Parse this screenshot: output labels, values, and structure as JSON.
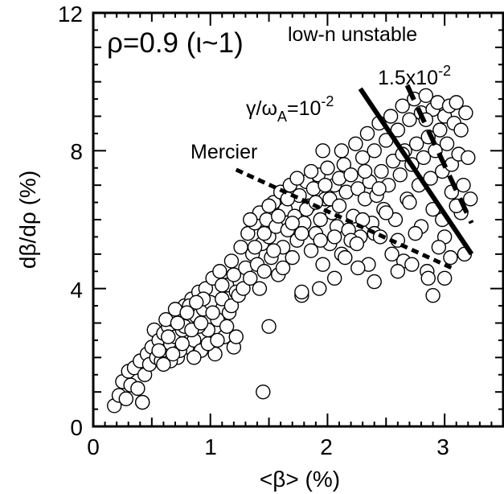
{
  "chart_data": {
    "type": "scatter",
    "title": "",
    "xlabel": "<β> (%)",
    "ylabel": "dβ/dρ (%)",
    "xlim": [
      0,
      3.5
    ],
    "ylim": [
      0,
      12
    ],
    "xticks": [
      0,
      1,
      2,
      3
    ],
    "xtick_labels": [
      "0",
      "1",
      "2",
      "3"
    ],
    "yticks": [
      0,
      4,
      8,
      12
    ],
    "ytick_labels": [
      "0",
      "4",
      "8",
      "12"
    ],
    "grid": false,
    "annotations": {
      "rho_label": "ρ=0.9 (ι~1)",
      "region_label": "low-n unstable",
      "growth_label_main": "γ/ω",
      "growth_label_sub": "A",
      "growth_label_eq": "=10",
      "growth_label_exp": "-2",
      "growth2_label_main": "1.5x10",
      "growth2_label_exp": "-2",
      "mercier_label": "Mercier"
    },
    "lines": [
      {
        "name": "γ/ωA=10^-2",
        "style": "solid",
        "x": [
          2.28,
          3.23
        ],
        "y": [
          9.8,
          5.0
        ]
      },
      {
        "name": "γ/ωA=1.5x10^-2",
        "style": "dashed",
        "x": [
          2.68,
          3.23
        ],
        "y": [
          9.9,
          5.9
        ]
      },
      {
        "name": "Mercier",
        "style": "dotted",
        "x": [
          1.22,
          3.06
        ],
        "y": [
          7.45,
          4.6
        ]
      }
    ],
    "points": [
      [
        0.18,
        0.6
      ],
      [
        0.22,
        0.9
      ],
      [
        0.25,
        1.3
      ],
      [
        0.28,
        0.8
      ],
      [
        0.3,
        1.6
      ],
      [
        0.32,
        1.2
      ],
      [
        0.35,
        1.7
      ],
      [
        0.38,
        1.1
      ],
      [
        0.4,
        1.9
      ],
      [
        0.42,
        0.7
      ],
      [
        0.44,
        1.5
      ],
      [
        0.46,
        2.1
      ],
      [
        0.48,
        1.8
      ],
      [
        0.5,
        2.3
      ],
      [
        0.52,
        2.8
      ],
      [
        0.54,
        2.0
      ],
      [
        0.56,
        2.5
      ],
      [
        0.58,
        1.9
      ],
      [
        0.6,
        2.7
      ],
      [
        0.62,
        2.2
      ],
      [
        0.64,
        2.9
      ],
      [
        0.66,
        2.4
      ],
      [
        0.68,
        3.1
      ],
      [
        0.7,
        2.6
      ],
      [
        0.72,
        2.0
      ],
      [
        0.74,
        3.3
      ],
      [
        0.76,
        2.8
      ],
      [
        0.78,
        3.5
      ],
      [
        0.8,
        2.3
      ],
      [
        0.82,
        3.0
      ],
      [
        0.84,
        3.7
      ],
      [
        0.86,
        2.5
      ],
      [
        0.88,
        3.2
      ],
      [
        0.9,
        3.9
      ],
      [
        0.92,
        2.2
      ],
      [
        0.94,
        3.4
      ],
      [
        0.96,
        4.0
      ],
      [
        0.98,
        2.8
      ],
      [
        1.0,
        3.6
      ],
      [
        1.02,
        4.3
      ],
      [
        1.04,
        2.1
      ],
      [
        1.06,
        3.1
      ],
      [
        1.08,
        4.5
      ],
      [
        1.1,
        3.7
      ],
      [
        1.12,
        2.6
      ],
      [
        1.14,
        4.1
      ],
      [
        1.16,
        3.3
      ],
      [
        1.18,
        4.8
      ],
      [
        1.2,
        2.3
      ],
      [
        1.22,
        3.9
      ],
      [
        0.62,
        3.1
      ],
      [
        0.66,
        1.9
      ],
      [
        0.7,
        3.4
      ],
      [
        0.74,
        2.2
      ],
      [
        0.78,
        2.9
      ],
      [
        0.82,
        3.5
      ],
      [
        0.86,
        2.0
      ],
      [
        0.9,
        2.9
      ],
      [
        0.94,
        3.7
      ],
      [
        0.98,
        2.4
      ],
      [
        1.02,
        3.3
      ],
      [
        1.06,
        2.5
      ],
      [
        1.1,
        4.1
      ],
      [
        1.14,
        2.9
      ],
      [
        1.18,
        3.5
      ],
      [
        1.2,
        4.4
      ],
      [
        1.22,
        2.6
      ],
      [
        1.24,
        3.8
      ],
      [
        1.26,
        5.2
      ],
      [
        1.28,
        4.0
      ],
      [
        0.56,
        2.2
      ],
      [
        0.6,
        1.8
      ],
      [
        0.64,
        2.6
      ],
      [
        0.68,
        2.1
      ],
      [
        0.72,
        3.0
      ],
      [
        0.76,
        2.4
      ],
      [
        0.8,
        3.3
      ],
      [
        0.84,
        2.8
      ],
      [
        0.88,
        3.6
      ],
      [
        0.92,
        3.0
      ],
      [
        1.3,
        4.6
      ],
      [
        1.32,
        5.6
      ],
      [
        1.34,
        4.3
      ],
      [
        1.36,
        5.0
      ],
      [
        1.38,
        5.9
      ],
      [
        1.4,
        4.7
      ],
      [
        1.42,
        6.2
      ],
      [
        1.44,
        5.3
      ],
      [
        1.46,
        4.5
      ],
      [
        1.48,
        6.0
      ],
      [
        1.5,
        5.5
      ],
      [
        1.52,
        4.9
      ],
      [
        1.54,
        6.5
      ],
      [
        1.56,
        5.8
      ],
      [
        1.58,
        4.4
      ],
      [
        1.6,
        6.8
      ],
      [
        1.62,
        5.2
      ],
      [
        1.64,
        6.3
      ],
      [
        1.66,
        5.7
      ],
      [
        1.68,
        7.0
      ],
      [
        1.7,
        4.9
      ],
      [
        1.72,
        6.1
      ],
      [
        1.74,
        5.4
      ],
      [
        1.76,
        6.7
      ],
      [
        1.78,
        3.8
      ],
      [
        1.8,
        5.9
      ],
      [
        1.82,
        7.1
      ],
      [
        1.84,
        6.4
      ],
      [
        1.86,
        5.1
      ],
      [
        1.88,
        6.9
      ],
      [
        1.9,
        5.6
      ],
      [
        1.92,
        7.3
      ],
      [
        1.94,
        6.0
      ],
      [
        1.96,
        4.7
      ],
      [
        1.98,
        6.6
      ],
      [
        2.0,
        7.5
      ],
      [
        2.02,
        5.3
      ],
      [
        2.04,
        6.2
      ],
      [
        2.06,
        7.0
      ],
      [
        2.08,
        5.8
      ],
      [
        1.34,
        6.0
      ],
      [
        1.38,
        5.2
      ],
      [
        1.42,
        4.0
      ],
      [
        1.46,
        5.6
      ],
      [
        1.5,
        6.4
      ],
      [
        1.54,
        5.1
      ],
      [
        1.58,
        6.1
      ],
      [
        1.62,
        4.6
      ],
      [
        1.66,
        6.6
      ],
      [
        1.7,
        5.9
      ],
      [
        1.74,
        7.2
      ],
      [
        1.78,
        5.6
      ],
      [
        1.82,
        6.3
      ],
      [
        1.86,
        7.4
      ],
      [
        1.9,
        6.5
      ],
      [
        1.94,
        5.4
      ],
      [
        1.98,
        7.0
      ],
      [
        2.02,
        6.6
      ],
      [
        2.06,
        5.5
      ],
      [
        2.1,
        7.2
      ],
      [
        2.1,
        6.4
      ],
      [
        2.12,
        5.0
      ],
      [
        2.14,
        7.6
      ],
      [
        2.16,
        6.8
      ],
      [
        2.18,
        5.7
      ],
      [
        2.2,
        7.3
      ],
      [
        2.22,
        6.1
      ],
      [
        2.24,
        8.2
      ],
      [
        2.26,
        6.9
      ],
      [
        2.28,
        5.5
      ],
      [
        2.3,
        7.8
      ],
      [
        2.32,
        6.6
      ],
      [
        2.34,
        8.5
      ],
      [
        2.36,
        7.1
      ],
      [
        2.38,
        5.9
      ],
      [
        2.4,
        8.0
      ],
      [
        2.42,
        6.7
      ],
      [
        2.44,
        8.8
      ],
      [
        2.46,
        7.4
      ],
      [
        2.48,
        6.3
      ],
      [
        2.5,
        8.3
      ],
      [
        2.52,
        7.0
      ],
      [
        2.54,
        9.0
      ],
      [
        2.56,
        7.7
      ],
      [
        2.58,
        6.0
      ],
      [
        2.6,
        8.6
      ],
      [
        2.62,
        7.3
      ],
      [
        2.64,
        9.3
      ],
      [
        2.66,
        8.0
      ],
      [
        2.68,
        6.6
      ],
      [
        2.7,
        8.9
      ],
      [
        2.72,
        7.6
      ],
      [
        2.74,
        9.5
      ],
      [
        2.76,
        8.2
      ],
      [
        2.78,
        7.0
      ],
      [
        2.8,
        9.1
      ],
      [
        2.82,
        7.8
      ],
      [
        2.84,
        9.6
      ],
      [
        2.86,
        8.4
      ],
      [
        2.88,
        7.2
      ],
      [
        2.9,
        9.2
      ],
      [
        2.92,
        8.0
      ],
      [
        2.94,
        9.4
      ],
      [
        2.96,
        8.6
      ],
      [
        2.98,
        7.4
      ],
      [
        3.0,
        9.0
      ],
      [
        3.02,
        8.2
      ],
      [
        3.04,
        9.3
      ],
      [
        3.06,
        7.6
      ],
      [
        3.08,
        8.8
      ],
      [
        3.1,
        9.4
      ],
      [
        3.12,
        7.9
      ],
      [
        3.14,
        8.6
      ],
      [
        3.16,
        7.0
      ],
      [
        3.18,
        9.1
      ],
      [
        3.2,
        7.8
      ],
      [
        3.22,
        6.6
      ],
      [
        3.14,
        6.2
      ],
      [
        3.06,
        6.8
      ],
      [
        2.98,
        6.0
      ],
      [
        2.2,
        5.4
      ],
      [
        2.3,
        6.0
      ],
      [
        2.4,
        5.6
      ],
      [
        2.5,
        6.2
      ],
      [
        2.6,
        5.4
      ],
      [
        2.7,
        6.5
      ],
      [
        2.8,
        5.8
      ],
      [
        2.9,
        6.3
      ],
      [
        3.0,
        5.5
      ],
      [
        3.1,
        6.4
      ],
      [
        2.15,
        4.9
      ],
      [
        2.25,
        5.3
      ],
      [
        2.35,
        4.7
      ],
      [
        2.45,
        5.5
      ],
      [
        2.55,
        5.0
      ],
      [
        2.65,
        4.8
      ],
      [
        2.75,
        5.6
      ],
      [
        2.85,
        4.5
      ],
      [
        2.95,
        5.2
      ],
      [
        3.05,
        4.9
      ],
      [
        2.4,
        4.2
      ],
      [
        2.6,
        4.5
      ],
      [
        2.86,
        4.3
      ],
      [
        3.0,
        4.3
      ],
      [
        2.9,
        3.8
      ],
      [
        1.93,
        4.0
      ],
      [
        1.78,
        3.9
      ],
      [
        2.06,
        4.3
      ],
      [
        2.26,
        4.6
      ],
      [
        3.17,
        5.0
      ],
      [
        1.5,
        2.9
      ],
      [
        1.45,
        1.0
      ],
      [
        0.42,
        0.7
      ],
      [
        2.72,
        4.7
      ],
      [
        2.32,
        7.4
      ],
      [
        2.12,
        8.0
      ],
      [
        1.96,
        8.0
      ],
      [
        2.44,
        6.9
      ],
      [
        2.64,
        7.9
      ],
      [
        2.84,
        8.9
      ]
    ]
  }
}
